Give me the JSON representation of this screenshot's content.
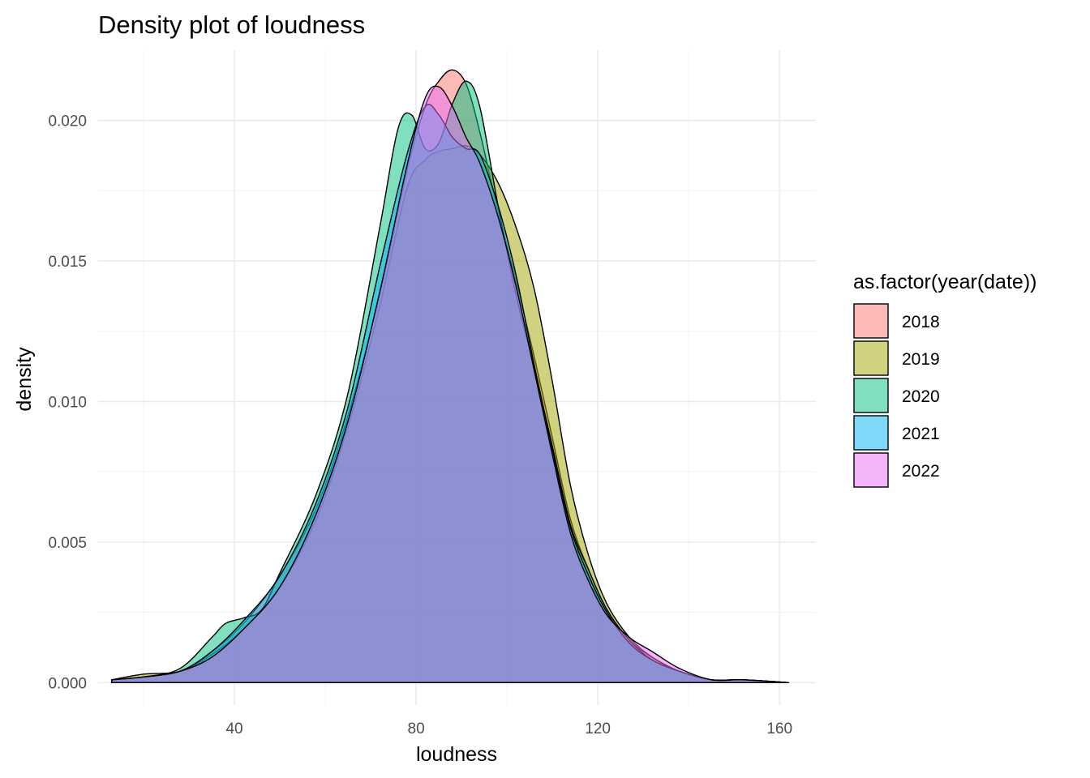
{
  "chart_data": {
    "type": "area",
    "title": "Density plot of loudness",
    "xlabel": "loudness",
    "ylabel": "density",
    "xlim": [
      10,
      168
    ],
    "ylim": [
      -0.0008,
      0.0225
    ],
    "x_ticks": [
      40,
      80,
      120,
      160
    ],
    "y_ticks": [
      0.0,
      0.005,
      0.01,
      0.015,
      0.02
    ],
    "x_tick_labels": [
      "40",
      "80",
      "120",
      "160"
    ],
    "y_tick_labels": [
      "0.000",
      "0.005",
      "0.010",
      "0.015",
      "0.020"
    ],
    "grid": true,
    "legend": {
      "title": "as.factor(year(date))",
      "placement": "right"
    },
    "series": [
      {
        "name": "2018",
        "color": "#F8766D",
        "x": [
          13,
          20,
          28,
          35,
          42,
          50,
          58,
          65,
          72,
          78,
          82,
          85,
          88,
          91,
          94,
          98,
          102,
          106,
          110,
          114,
          118,
          122,
          127,
          132,
          138,
          145,
          152,
          162
        ],
        "y": [
          0.0001,
          0.0002,
          0.0004,
          0.0011,
          0.0021,
          0.0038,
          0.0062,
          0.0095,
          0.0138,
          0.0182,
          0.0205,
          0.0214,
          0.0218,
          0.0213,
          0.0196,
          0.0168,
          0.0143,
          0.0116,
          0.0087,
          0.0058,
          0.004,
          0.0026,
          0.0015,
          0.0009,
          0.0004,
          0.0001,
          0.0001,
          0.0
        ]
      },
      {
        "name": "2019",
        "color": "#A3A500",
        "x": [
          13,
          20,
          28,
          35,
          42,
          50,
          58,
          65,
          72,
          78,
          82,
          85,
          88,
          91,
          94,
          98,
          102,
          106,
          110,
          114,
          118,
          122,
          127,
          132,
          138,
          145,
          152,
          162
        ],
        "y": [
          0.0001,
          0.0003,
          0.0004,
          0.001,
          0.0019,
          0.0034,
          0.0058,
          0.0091,
          0.0134,
          0.0176,
          0.0186,
          0.0189,
          0.019,
          0.0191,
          0.0188,
          0.0178,
          0.0162,
          0.014,
          0.0107,
          0.007,
          0.0045,
          0.0028,
          0.0016,
          0.0009,
          0.0004,
          0.0001,
          0.0001,
          0.0
        ]
      },
      {
        "name": "2020",
        "color": "#00BF7D",
        "x": [
          13,
          20,
          28,
          35,
          38,
          42,
          46,
          50,
          58,
          65,
          72,
          76,
          79,
          82,
          85,
          88,
          91,
          94,
          98,
          102,
          106,
          110,
          114,
          118,
          122,
          127,
          132,
          138,
          145,
          152,
          162
        ],
        "y": [
          0.0001,
          0.0002,
          0.0005,
          0.0016,
          0.0021,
          0.0023,
          0.0026,
          0.0039,
          0.0067,
          0.0103,
          0.0162,
          0.0197,
          0.0202,
          0.019,
          0.0192,
          0.0206,
          0.0214,
          0.0205,
          0.017,
          0.0138,
          0.0112,
          0.0084,
          0.0056,
          0.004,
          0.0026,
          0.0015,
          0.0008,
          0.0004,
          0.0001,
          0.0001,
          0.0
        ]
      },
      {
        "name": "2021",
        "color": "#00B0F6",
        "x": [
          13,
          20,
          28,
          35,
          42,
          50,
          58,
          65,
          72,
          78,
          82,
          85,
          88,
          91,
          94,
          98,
          102,
          106,
          110,
          114,
          118,
          122,
          127,
          132,
          138,
          145,
          152,
          162
        ],
        "y": [
          0.0001,
          0.0002,
          0.0004,
          0.0011,
          0.0022,
          0.0038,
          0.0064,
          0.0098,
          0.0148,
          0.0188,
          0.0205,
          0.0202,
          0.0194,
          0.019,
          0.0188,
          0.017,
          0.0145,
          0.0113,
          0.0083,
          0.0055,
          0.0038,
          0.0025,
          0.0014,
          0.0008,
          0.0004,
          0.0001,
          0.0001,
          0.0
        ]
      },
      {
        "name": "2022",
        "color": "#E76BF3",
        "x": [
          13,
          20,
          28,
          35,
          42,
          50,
          58,
          65,
          72,
          78,
          82,
          85,
          88,
          91,
          94,
          98,
          102,
          106,
          110,
          114,
          118,
          122,
          127,
          132,
          138,
          145,
          152,
          162
        ],
        "y": [
          0.0001,
          0.0002,
          0.0004,
          0.0009,
          0.0019,
          0.0034,
          0.006,
          0.0093,
          0.0139,
          0.0184,
          0.0208,
          0.0212,
          0.0205,
          0.0194,
          0.0185,
          0.0166,
          0.0141,
          0.0111,
          0.0081,
          0.0053,
          0.0036,
          0.0024,
          0.0016,
          0.0011,
          0.0005,
          0.0001,
          0.0001,
          0.0
        ]
      }
    ]
  }
}
